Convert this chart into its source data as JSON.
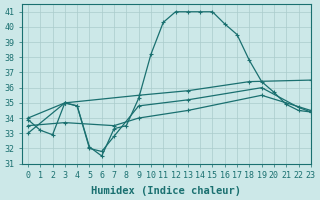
{
  "xlabel": "Humidex (Indice chaleur)",
  "xlim": [
    -0.5,
    23
  ],
  "ylim": [
    31,
    41.5
  ],
  "xticks": [
    0,
    1,
    2,
    3,
    4,
    5,
    6,
    7,
    8,
    9,
    10,
    11,
    12,
    13,
    14,
    15,
    16,
    17,
    18,
    19,
    20,
    21,
    22,
    23
  ],
  "yticks": [
    31,
    32,
    33,
    34,
    35,
    36,
    37,
    38,
    39,
    40,
    41
  ],
  "bg_color": "#cce8e8",
  "grid_color": "#aacccc",
  "line_color": "#1a7070",
  "lines": [
    {
      "x": [
        0,
        1,
        2,
        3,
        4,
        5,
        6,
        7,
        8,
        9,
        10,
        11,
        12,
        13,
        14,
        15,
        16,
        17,
        18,
        19,
        20,
        21,
        22,
        23
      ],
      "y": [
        33.9,
        33.2,
        32.9,
        35.0,
        34.8,
        32.1,
        31.5,
        33.3,
        33.5,
        35.3,
        38.2,
        40.3,
        41.0,
        41.0,
        41.0,
        41.0,
        40.2,
        39.5,
        37.8,
        36.4,
        35.7,
        34.9,
        34.5,
        34.4
      ],
      "marker": "+"
    },
    {
      "x": [
        0,
        3,
        9,
        13,
        18,
        23
      ],
      "y": [
        34.0,
        35.0,
        35.5,
        35.8,
        36.4,
        36.5
      ],
      "marker": "+"
    },
    {
      "x": [
        0,
        3,
        7,
        9,
        13,
        19,
        23
      ],
      "y": [
        33.5,
        33.7,
        33.5,
        34.0,
        34.5,
        35.5,
        34.5
      ],
      "marker": "+"
    },
    {
      "x": [
        0,
        3,
        4,
        5,
        6,
        7,
        9,
        13,
        19,
        22,
        23
      ],
      "y": [
        33.0,
        35.0,
        34.8,
        32.0,
        31.8,
        32.8,
        34.8,
        35.2,
        36.0,
        34.7,
        34.4
      ],
      "marker": "+"
    }
  ],
  "font_color": "#1a7070",
  "tick_fontsize": 6,
  "label_fontsize": 7.5
}
